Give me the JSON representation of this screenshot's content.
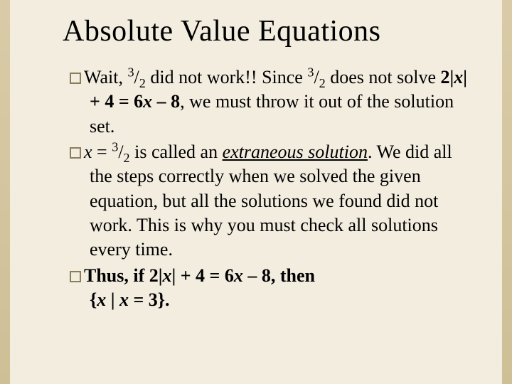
{
  "background_color": "#f3ede0",
  "accent_color": "#dacba8",
  "title": {
    "text": "Absolute Value Equations",
    "fontsize": 42,
    "color": "#000000"
  },
  "body": {
    "fontsize": 26,
    "color": "#000000",
    "bullet_color": "#8b7d5a"
  },
  "p1": {
    "a": "Wait, ",
    "frac1_n": "3",
    "frac1_d": "2",
    "b": " did not work!! Since ",
    "frac2_n": "3",
    "frac2_d": "2",
    "c": " does not solve  ",
    "eq": "2|",
    "x1": "x",
    "eq2": "| + 4 = 6",
    "x2": "x",
    "eq3": " – 8",
    "d": ",  we must throw it out of the solution set."
  },
  "p2": {
    "x": "x",
    "a": " = ",
    "frac_n": "3",
    "frac_d": "2",
    "b": " is called an ",
    "term": "extraneous solution",
    "c": ". We did all the steps correctly when we solved the given equation, but all the solutions we found did not work. This is why you must check all solutions every time."
  },
  "p3": {
    "a": "Thus, if 2|",
    "x1": "x",
    "b": "| + 4 = 6",
    "x2": "x",
    "c": " – 8, then ",
    "d": "{",
    "x3": "x",
    "e": " | ",
    "x4": "x",
    "f": " = 3}."
  }
}
